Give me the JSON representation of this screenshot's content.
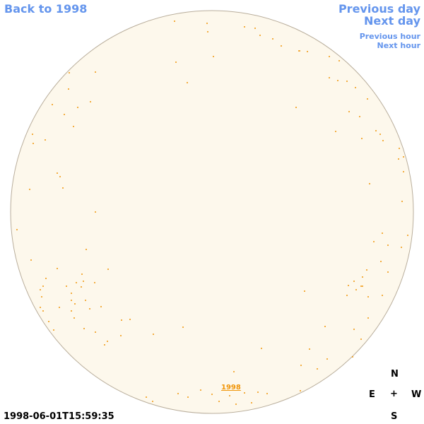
{
  "nav": {
    "back_year": "Back to 1998",
    "previous_day": "Previous day",
    "next_day": "Next day",
    "previous_hour": "Previous hour",
    "next_hour": "Next hour"
  },
  "disk": {
    "year_link": "1998"
  },
  "timestamp": "1998-06-01T15:59:35",
  "compass": {
    "north": "N",
    "east": "E",
    "center": "+",
    "west": "W",
    "south": "S"
  }
}
